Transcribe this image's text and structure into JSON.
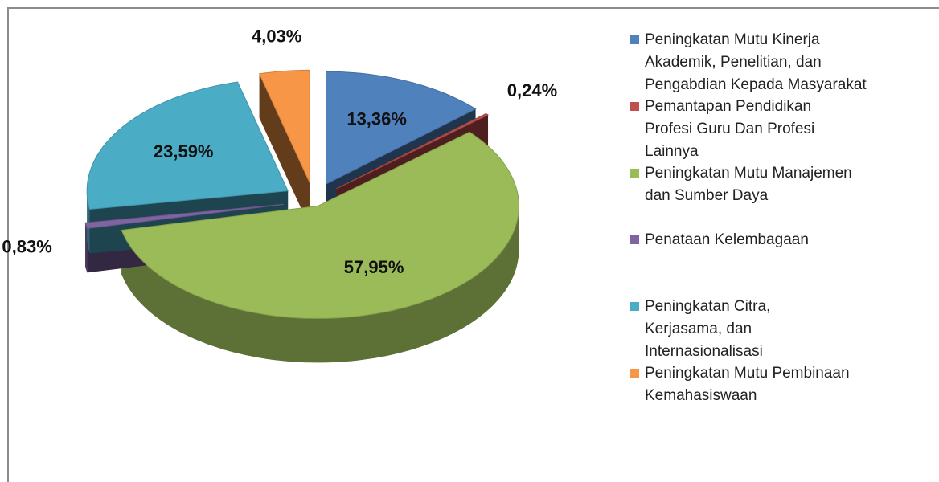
{
  "chart_data": {
    "type": "pie",
    "categories": [
      "Peningkatan Mutu Kinerja Akademik, Penelitian, dan Pengabdian Kepada Masyarakat",
      "Pemantapan Pendidikan Profesi Guru Dan Profesi Lainnya",
      "Peningkatan Mutu Manajemen dan Sumber Daya",
      "Penataan Kelembagaan",
      "Peningkatan Citra, Kerjasama, dan Internasionalisasi",
      "Peningkatan Mutu Pembinaan Kemahasiswaan"
    ],
    "values": [
      13.36,
      0.24,
      57.95,
      0.83,
      23.59,
      4.03
    ],
    "value_labels": [
      "13,36%",
      "0,24%",
      "57,95%",
      "0,83%",
      "23,59%",
      "4,03%"
    ],
    "colors": [
      "#4f81bd",
      "#c0504d",
      "#9bbb59",
      "#8064a2",
      "#4bacc6",
      "#f79646"
    ],
    "legend": "right"
  }
}
